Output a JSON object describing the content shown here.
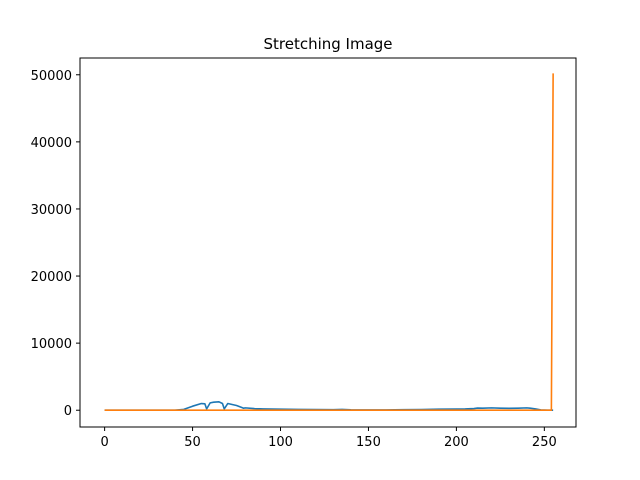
{
  "chart_data": {
    "type": "line",
    "title": "Stretching Image",
    "xlabel": "",
    "ylabel": "",
    "xlim": [
      -14,
      268
    ],
    "ylim": [
      -2500,
      52500
    ],
    "xticks": [
      0,
      50,
      100,
      150,
      200,
      250
    ],
    "yticks": [
      0,
      10000,
      20000,
      30000,
      40000,
      50000
    ],
    "grid": false,
    "legend": "none",
    "series": [
      {
        "color": "#1f77b4",
        "x": [
          0,
          10,
          20,
          30,
          40,
          45,
          50,
          55,
          57,
          58,
          60,
          62,
          65,
          67,
          68,
          70,
          75,
          78,
          79,
          80,
          85,
          90,
          100,
          110,
          120,
          130,
          135,
          140,
          150,
          160,
          170,
          180,
          190,
          200,
          205,
          210,
          212,
          215,
          220,
          225,
          230,
          235,
          240,
          242,
          245,
          248,
          250,
          252,
          255
        ],
        "y": [
          0,
          0,
          0,
          0,
          0,
          120,
          600,
          1000,
          950,
          200,
          1100,
          1200,
          1250,
          1000,
          200,
          1000,
          700,
          400,
          300,
          350,
          250,
          200,
          150,
          120,
          100,
          80,
          120,
          60,
          40,
          50,
          80,
          100,
          150,
          180,
          200,
          250,
          320,
          300,
          350,
          300,
          280,
          300,
          350,
          300,
          200,
          50,
          20,
          0,
          0
        ]
      },
      {
        "color": "#ff7f0e",
        "x": [
          0,
          50,
          100,
          150,
          200,
          250,
          251,
          252,
          253,
          254,
          255
        ],
        "y": [
          0,
          0,
          0,
          0,
          0,
          0,
          0,
          0,
          0,
          0,
          50200
        ]
      }
    ]
  }
}
